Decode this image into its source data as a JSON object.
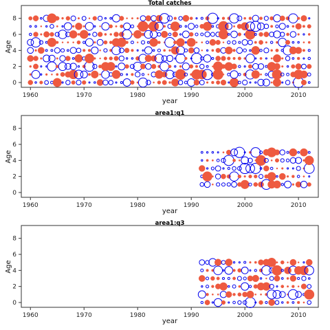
{
  "chart_data": [
    {
      "type": "scatter",
      "title": "Total catches",
      "xlabel": "year",
      "ylabel": "Age",
      "xlim": [
        1958.3,
        2013.7
      ],
      "ylim": [
        -0.6,
        9.6
      ],
      "xticks": [
        1960,
        1970,
        1980,
        1990,
        2000,
        2010
      ],
      "yticks": [
        0,
        2,
        4,
        6,
        8
      ],
      "years": [
        1960,
        2012
      ],
      "ages": [
        0,
        8
      ],
      "bubble_colors": {
        "positive": "#0000ee",
        "negative": "#ee5a40"
      },
      "legend": "none",
      "grid": false
    },
    {
      "type": "scatter",
      "title": "area1:q1",
      "xlabel": "year",
      "ylabel": "Age",
      "xlim": [
        1958.3,
        2013.7
      ],
      "ylim": [
        -0.6,
        9.6
      ],
      "xticks": [
        1960,
        1970,
        1980,
        1990,
        2000,
        2010
      ],
      "yticks": [
        0,
        2,
        4,
        6,
        8
      ],
      "years": [
        1992,
        2012
      ],
      "ages": [
        1,
        5
      ],
      "bubble_colors": {
        "positive": "#0000ee",
        "negative": "#ee5a40"
      },
      "legend": "none",
      "grid": false
    },
    {
      "type": "scatter",
      "title": "area1:q3",
      "xlabel": "year",
      "ylabel": "Age",
      "xlim": [
        1958.3,
        2013.7
      ],
      "ylim": [
        -0.6,
        9.6
      ],
      "xticks": [
        1960,
        1970,
        1980,
        1990,
        2000,
        2010
      ],
      "yticks": [
        0,
        2,
        4,
        6,
        8
      ],
      "years": [
        1992,
        2012
      ],
      "ages": [
        0,
        5
      ],
      "bubble_colors": {
        "positive": "#0000ee",
        "negative": "#ee5a40"
      },
      "legend": "none",
      "grid": false
    }
  ]
}
